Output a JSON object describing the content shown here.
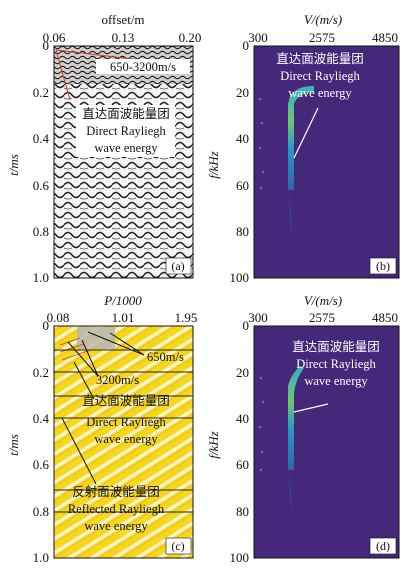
{
  "colors": {
    "viridis_bg": "#46287a",
    "yellow_bg": "#f5d81e",
    "stripe": "#f8f2d2",
    "gray_band": "#9a9a9a",
    "red_line": "#d23a2a",
    "cyan": "#2fb7d8",
    "green": "#8fd84a"
  },
  "chart_data": [
    {
      "panel": "a",
      "type": "heatmap",
      "title": "offset/m",
      "xlabel": "offset/m",
      "ylabel": "t/ms",
      "x_ticks": [
        "0.06",
        "0.13",
        "0.20"
      ],
      "y_ticks": [
        "0",
        "0.2",
        "0.4",
        "0.6",
        "0.8",
        "1.0"
      ],
      "xlim": [
        0.06,
        0.2
      ],
      "ylim": [
        0,
        1.0
      ],
      "panel_label": "(a)",
      "annotations": [
        "650-3200m/s",
        "直达面波能量团",
        "Direct Rayliegh",
        "wave energy"
      ]
    },
    {
      "panel": "b",
      "type": "heatmap",
      "xlabel": "V/(m/s)",
      "ylabel": "f/kHz",
      "x_ticks": [
        "300",
        "2575",
        "4850"
      ],
      "y_ticks": [
        "0",
        "20",
        "40",
        "60",
        "80",
        "100"
      ],
      "xlim": [
        300,
        4850
      ],
      "ylim": [
        0,
        100
      ],
      "panel_label": "(b)",
      "annotations": [
        "直达面波能量团",
        "Direct Rayliegh",
        "wave energy"
      ]
    },
    {
      "panel": "c",
      "type": "heatmap",
      "xlabel": "P/1000",
      "ylabel": "t/ms",
      "x_ticks": [
        "0.08",
        "1.01",
        "1.95"
      ],
      "y_ticks": [
        "0",
        "0.2",
        "0.4",
        "0.6",
        "0.8",
        "1.0"
      ],
      "xlim": [
        0.08,
        1.95
      ],
      "ylim": [
        0,
        1.0
      ],
      "panel_label": "(c)",
      "annotations": [
        "650m/s",
        "3200m/s",
        "直达面波能量团",
        "Direct Rayliegh",
        "wave energy",
        "反射面波能量团",
        "Reflected Rayliegh",
        "wave energy"
      ]
    },
    {
      "panel": "d",
      "type": "heatmap",
      "xlabel": "V/(m/s)",
      "ylabel": "f/kHz",
      "x_ticks": [
        "300",
        "2575",
        "4850"
      ],
      "y_ticks": [
        "0",
        "20",
        "40",
        "60",
        "80",
        "100"
      ],
      "xlim": [
        300,
        4850
      ],
      "ylim": [
        0,
        100
      ],
      "panel_label": "(d)",
      "annotations": [
        "直达面波能量团",
        "Direct Rayliegh",
        "wave energy"
      ]
    }
  ]
}
